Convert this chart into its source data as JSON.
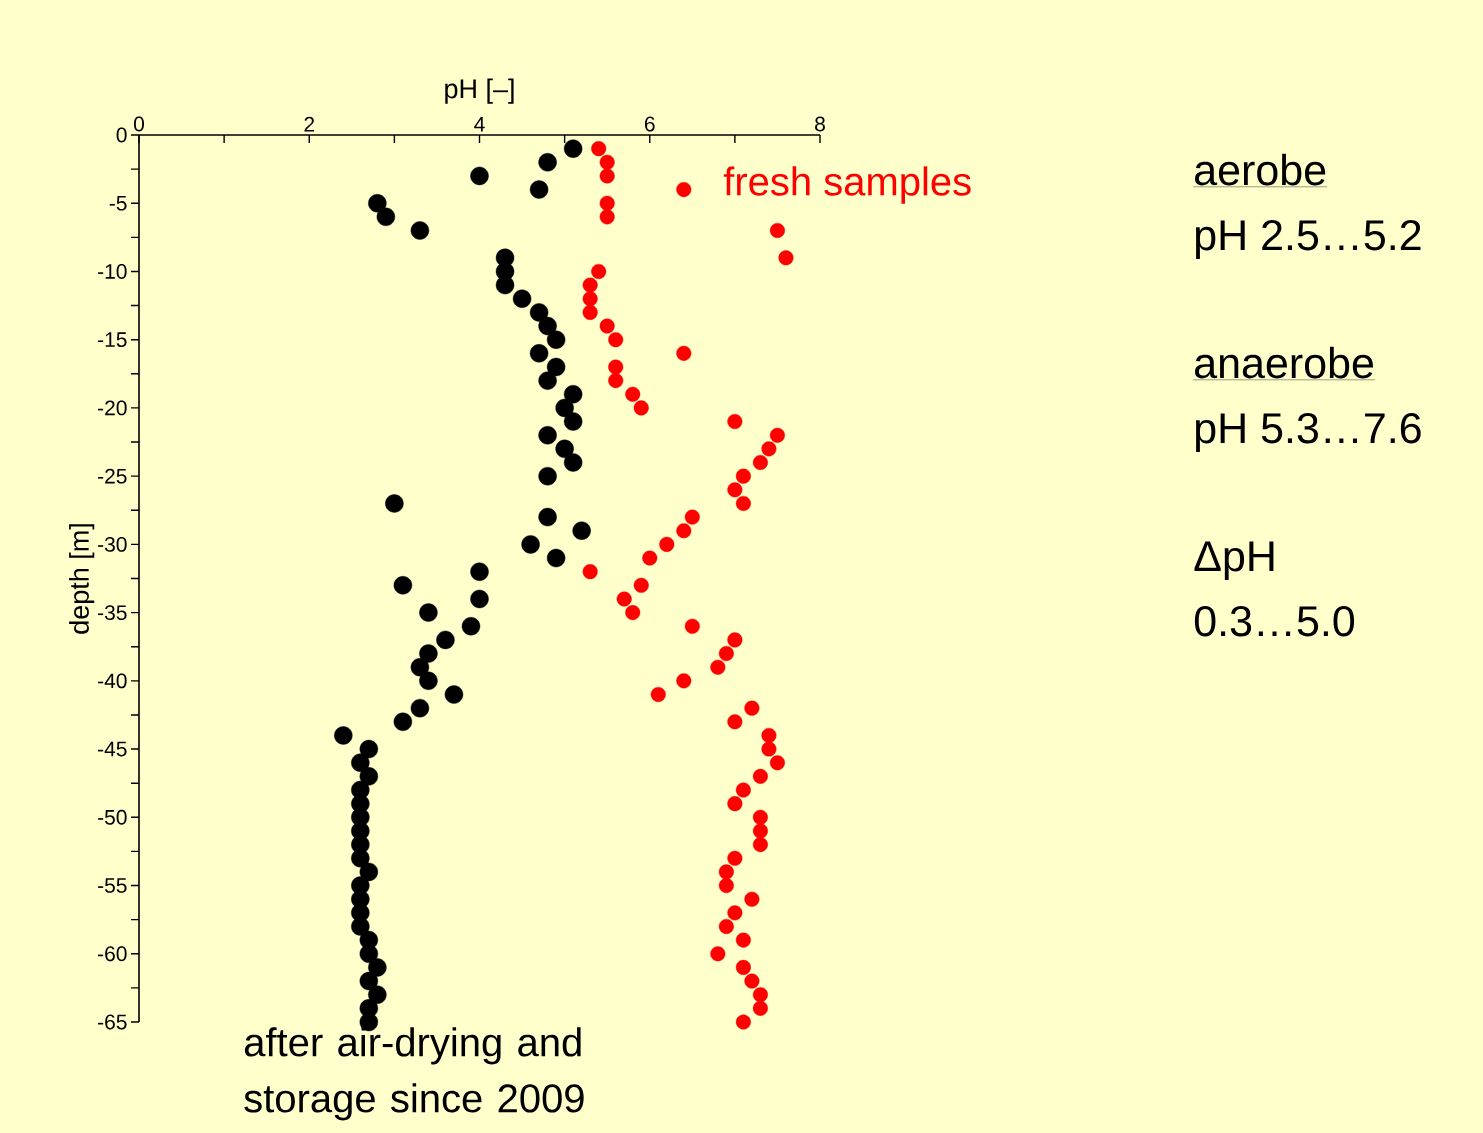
{
  "chart_data": {
    "type": "scatter",
    "xlabel": "pH [–]",
    "ylabel": "depth [m]",
    "xlim": [
      0,
      8
    ],
    "ylim": [
      -65,
      0
    ],
    "xticks": [
      0,
      {
        "value": 1,
        "label": null
      },
      2,
      {
        "value": 3,
        "label": null
      },
      4,
      {
        "value": 5,
        "label": null
      },
      6,
      {
        "value": 7,
        "label": null
      },
      8
    ],
    "yticks": [
      0,
      {
        "value": -2.5,
        "label": null
      },
      -5,
      {
        "value": -7.5,
        "label": null
      },
      -10,
      {
        "value": -12.5,
        "label": null
      },
      -15,
      {
        "value": -17.5,
        "label": null
      },
      -20,
      {
        "value": -22.5,
        "label": null
      },
      -25,
      {
        "value": -27.5,
        "label": null
      },
      -30,
      {
        "value": -32.5,
        "label": null
      },
      -35,
      {
        "value": -37.5,
        "label": null
      },
      -40,
      {
        "value": -42.5,
        "label": null
      },
      -45,
      {
        "value": -47.5,
        "label": null
      },
      -50,
      {
        "value": -52.5,
        "label": null
      },
      -55,
      {
        "value": -57.5,
        "label": null
      },
      -60,
      {
        "value": -62.5,
        "label": null
      },
      -65
    ],
    "series": [
      {
        "name": "after air-drying and storage since 2009",
        "color": "#000000",
        "x": [
          5.1,
          4.8,
          4.0,
          4.7,
          2.8,
          2.9,
          3.3,
          4.3,
          4.3,
          4.3,
          4.5,
          4.7,
          4.8,
          4.9,
          4.7,
          4.9,
          4.8,
          5.1,
          5.0,
          5.1,
          4.8,
          5.0,
          5.1,
          4.8,
          3.0,
          4.8,
          5.2,
          4.6,
          4.9,
          4.0,
          3.1,
          4.0,
          3.4,
          3.9,
          3.6,
          3.4,
          3.3,
          3.4,
          3.7,
          3.3,
          3.1,
          2.4,
          2.7,
          2.6,
          2.7,
          2.6,
          2.6,
          2.6,
          2.6,
          2.6,
          2.6,
          2.7,
          2.6,
          2.6,
          2.6,
          2.6,
          2.7,
          2.7,
          2.8,
          2.7,
          2.8,
          2.7,
          2.7
        ],
        "values": [
          -1,
          -2,
          -3,
          -4,
          -5,
          -6,
          -7,
          -9,
          -10,
          -11,
          -12,
          -13,
          -14,
          -15,
          -16,
          -17,
          -18,
          -19,
          -20,
          -21,
          -22,
          -23,
          -24,
          -25,
          -27,
          -28,
          -29,
          -30,
          -31,
          -32,
          -33,
          -34,
          -35,
          -36,
          -37,
          -38,
          -39,
          -40,
          -41,
          -42,
          -43,
          -44,
          -45,
          -46,
          -47,
          -48,
          -49,
          -50,
          -51,
          -52,
          -53,
          -54,
          -55,
          -56,
          -57,
          -58,
          -59,
          -60,
          -61,
          -62,
          -63,
          -64,
          -65
        ]
      },
      {
        "name": "fresh samples",
        "color": "#ff0000",
        "x": [
          5.4,
          5.5,
          5.5,
          6.4,
          5.5,
          5.5,
          7.5,
          7.6,
          5.4,
          5.3,
          5.3,
          5.3,
          5.5,
          5.6,
          6.4,
          5.6,
          5.6,
          5.8,
          5.9,
          7.0,
          7.5,
          7.4,
          7.3,
          7.1,
          7.0,
          7.1,
          6.5,
          6.4,
          6.2,
          6.0,
          5.3,
          5.9,
          5.7,
          5.8,
          6.5,
          7.0,
          6.9,
          6.8,
          6.4,
          6.1,
          7.2,
          7.0,
          7.4,
          7.4,
          7.5,
          7.3,
          7.1,
          7.0,
          7.3,
          7.3,
          7.3,
          7.0,
          6.9,
          6.9,
          7.2,
          7.0,
          6.9,
          7.1,
          6.8,
          7.1,
          7.2,
          7.3,
          7.3,
          7.1
        ],
        "values": [
          -1,
          -2,
          -3,
          -4,
          -5,
          -6,
          -7,
          -9,
          -10,
          -11,
          -12,
          -13,
          -14,
          -15,
          -16,
          -17,
          -18,
          -19,
          -20,
          -21,
          -22,
          -23,
          -24,
          -25,
          -26,
          -27,
          -28,
          -29,
          -30,
          -31,
          -32,
          -33,
          -34,
          -35,
          -36,
          -37,
          -38,
          -39,
          -40,
          -41,
          -42,
          -43,
          -44,
          -45,
          -46,
          -47,
          -48,
          -49,
          -50,
          -51,
          -52,
          -53,
          -54,
          -55,
          -56,
          -57,
          -58,
          -59,
          -60,
          -61,
          -62,
          -63,
          -64,
          -65
        ]
      }
    ],
    "annotations": [
      "aerobe",
      "pH 2.5…5.2",
      "anaerobe",
      "pH 5.3…7.6",
      "ΔpH",
      "0.3…5.0"
    ]
  }
}
